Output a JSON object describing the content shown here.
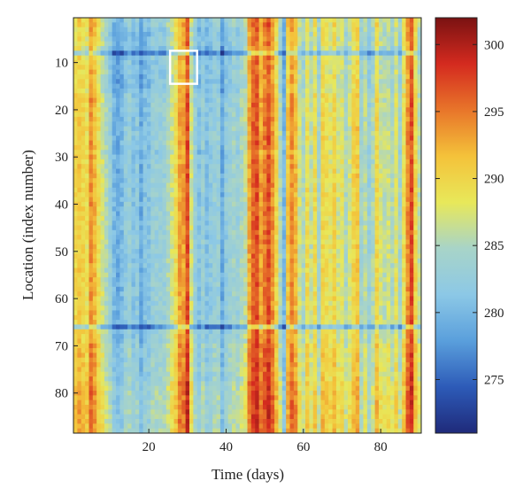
{
  "chart_data": {
    "type": "heatmap",
    "title": "",
    "xlabel": "Time (days)",
    "ylabel": "Location (index number)",
    "x_range": [
      1,
      90
    ],
    "y_range": [
      1,
      88
    ],
    "x_ticks": [
      "20",
      "40",
      "60",
      "80"
    ],
    "y_ticks": [
      "10",
      "20",
      "30",
      "40",
      "50",
      "60",
      "70",
      "80"
    ],
    "colorbar": {
      "range": [
        271,
        302
      ],
      "ticks": [
        "275",
        "280",
        "285",
        "290",
        "295",
        "300"
      ],
      "colormap": [
        "#1f2a7a",
        "#2d5bb8",
        "#5a9fdc",
        "#8cc8e6",
        "#a8d4c8",
        "#e8e85a",
        "#f4c23a",
        "#e8752a",
        "#d42a1f",
        "#7a1212"
      ]
    },
    "daily_mean_temperature": [
      290,
      291,
      290,
      289,
      294,
      292,
      289,
      287,
      285,
      283,
      280,
      279,
      280,
      282,
      283,
      281,
      282,
      279,
      281,
      281,
      283,
      283,
      283,
      283,
      285,
      287,
      289,
      293,
      293,
      297,
      287,
      283,
      281,
      283,
      281,
      282,
      283,
      283,
      279,
      282,
      283,
      284,
      283,
      285,
      286,
      293,
      296,
      297,
      293,
      295,
      297,
      294,
      290,
      285,
      280,
      291,
      294,
      292,
      287,
      285,
      289,
      286,
      289,
      284,
      290,
      289,
      288,
      290,
      287,
      288,
      285,
      287,
      290,
      291,
      284,
      286,
      283,
      285,
      290,
      287,
      286,
      287,
      285,
      288,
      284,
      289,
      294,
      297,
      290,
      286
    ],
    "location_offset": [
      0,
      0,
      -1,
      -1,
      -1,
      -1,
      -2,
      -6,
      -1,
      -1,
      -1,
      -1,
      -1,
      -1,
      -1,
      -1,
      0,
      0,
      0,
      0,
      0,
      0,
      0,
      0,
      0,
      0,
      0,
      0,
      -1,
      0,
      0,
      0,
      0,
      0,
      0,
      0,
      0,
      0,
      0,
      0,
      0,
      0,
      0,
      0,
      0,
      0,
      0,
      0,
      0,
      0,
      0,
      0,
      0,
      0,
      0,
      0,
      0,
      0,
      0,
      0,
      0,
      0,
      0,
      0,
      0,
      -6,
      0,
      0,
      0,
      1,
      1,
      1,
      1,
      1,
      1,
      1,
      1,
      2,
      2,
      2,
      2,
      2,
      2,
      2,
      2,
      2,
      2,
      2
    ],
    "highlight_box": {
      "x": [
        26,
        33
      ],
      "y": [
        8,
        15
      ]
    }
  }
}
